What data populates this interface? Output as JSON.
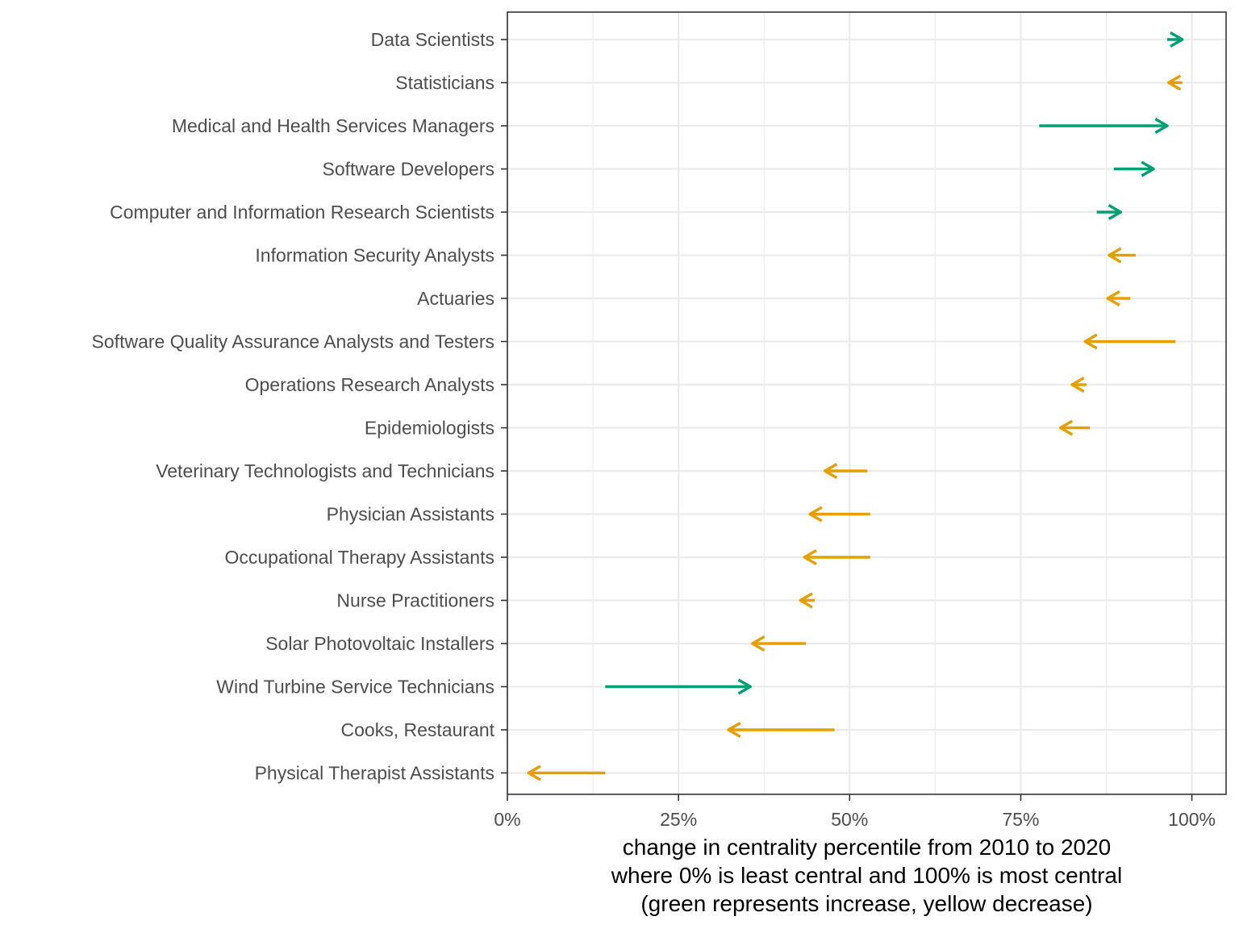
{
  "chart_data": {
    "type": "scatter",
    "xlabel": [
      "change in centrality percentile from 2010 to 2020",
      "where 0% is least central and 100% is most central",
      "(green represents increase, yellow decrease)"
    ],
    "xlim": [
      0,
      105
    ],
    "x_ticks": [
      0,
      25,
      50,
      75,
      100
    ],
    "x_tick_labels": [
      "0%",
      "25%",
      "50%",
      "75%",
      "100%"
    ],
    "x_minor_gridlines": [
      12.5,
      37.5,
      62.5,
      87.5
    ],
    "grid": true,
    "legend": "none",
    "categories": [
      "Data Scientists",
      "Statisticians",
      "Medical and Health Services Managers",
      "Software Developers",
      "Computer and Information Research Scientists",
      "Information Security Analysts",
      "Actuaries",
      "Software Quality Assurance Analysts and Testers",
      "Operations Research Analysts",
      "Epidemiologists",
      "Veterinary Technologists and Technicians",
      "Physician Assistants",
      "Occupational Therapy Assistants",
      "Nurse Practitioners",
      "Solar Photovoltaic Installers",
      "Wind Turbine Service Technicians",
      "Cooks, Restaurant",
      "Physical Therapist Assistants"
    ],
    "x_2010": [
      96.4,
      98.6,
      77.7,
      88.6,
      86.1,
      91.8,
      91.0,
      97.6,
      84.6,
      85.1,
      52.6,
      53.0,
      53.0,
      44.9,
      43.6,
      14.3,
      47.8,
      14.3
    ],
    "x_2020": [
      98.6,
      96.6,
      96.4,
      94.4,
      89.6,
      87.9,
      87.7,
      84.4,
      82.5,
      80.8,
      46.4,
      44.2,
      43.4,
      42.8,
      35.8,
      35.5,
      32.3,
      3.1
    ],
    "colors": {
      "increase": "#009E73",
      "decrease": "#E69F00"
    }
  }
}
